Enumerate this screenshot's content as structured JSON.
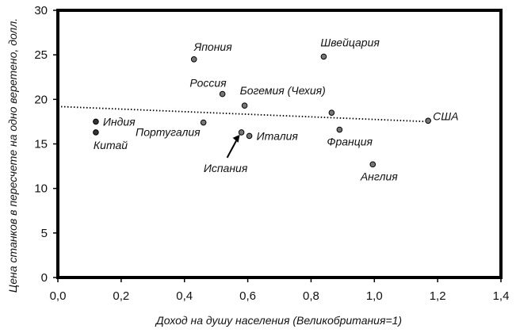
{
  "chart_data": {
    "type": "scatter",
    "title": "",
    "xlabel": "Доход на душу населения (Великобритания=1)",
    "ylabel": "Цена станков в пересчете на одно веретено, долл.",
    "xlim": [
      0,
      1.4
    ],
    "ylim": [
      0,
      30
    ],
    "x_ticks": [
      "0,0",
      "0,2",
      "0,4",
      "0,6",
      "0,8",
      "1,0",
      "1,2",
      "1,4"
    ],
    "y_ticks": [
      "0",
      "5",
      "10",
      "15",
      "20",
      "25",
      "30"
    ],
    "grid": false,
    "legend": "none",
    "points": [
      {
        "label": "Индия",
        "x": 0.12,
        "y": 17.5
      },
      {
        "label": "Китай",
        "x": 0.12,
        "y": 16.3
      },
      {
        "label": "Япония",
        "x": 0.43,
        "y": 24.5
      },
      {
        "label": "Португалия",
        "x": 0.46,
        "y": 17.4
      },
      {
        "label": "Россия",
        "x": 0.52,
        "y": 20.6
      },
      {
        "label": "Испания",
        "x": 0.58,
        "y": 16.3
      },
      {
        "label": "Богемия (Чехия)",
        "x": 0.59,
        "y": 19.3
      },
      {
        "label": "Италия",
        "x": 0.605,
        "y": 15.9
      },
      {
        "label": "Швейцария",
        "x": 0.84,
        "y": 24.8
      },
      {
        "label": "",
        "x": 0.865,
        "y": 18.5
      },
      {
        "label": "Франция",
        "x": 0.89,
        "y": 16.6
      },
      {
        "label": "Англия",
        "x": 0.995,
        "y": 12.7
      },
      {
        "label": "США",
        "x": 1.17,
        "y": 17.6
      }
    ],
    "trendline": {
      "style": "dotted",
      "x": [
        0,
        1.17
      ],
      "y": [
        19.2,
        17.5
      ]
    }
  }
}
